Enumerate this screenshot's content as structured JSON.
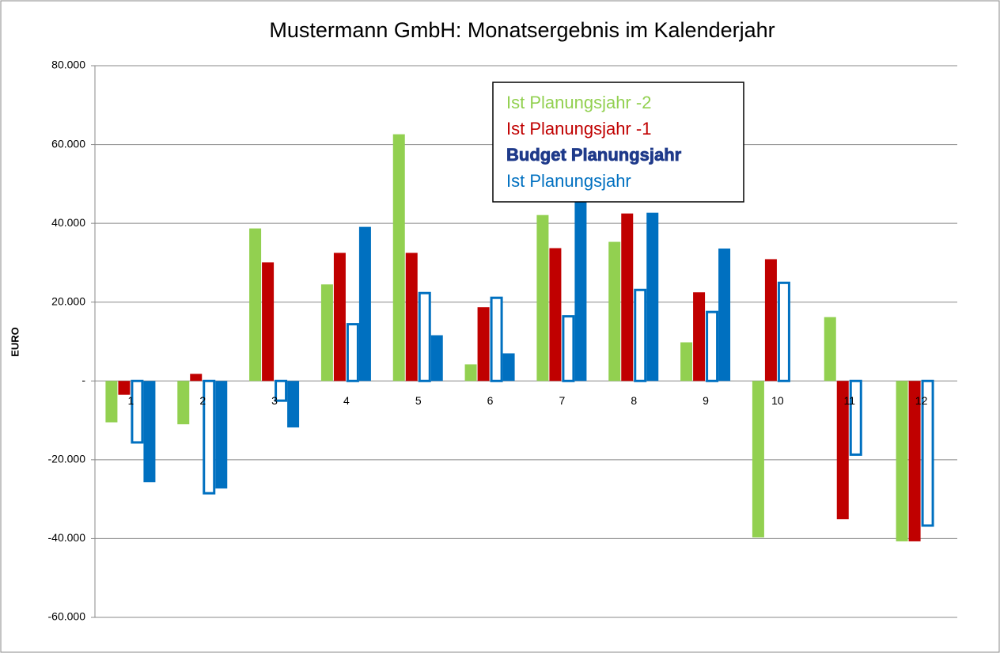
{
  "chart_data": {
    "type": "bar",
    "title": "Mustermann GmbH: Monatsergebnis im Kalenderjahr",
    "y_label": "EURO",
    "categories": [
      "1",
      "2",
      "3",
      "4",
      "5",
      "6",
      "7",
      "8",
      "9",
      "10",
      "11",
      "12"
    ],
    "series": [
      {
        "name": "Ist Planungsjahr -2",
        "color": "#92d050",
        "values": [
          -10500,
          -11000,
          38700,
          24500,
          62600,
          4200,
          42100,
          35300,
          9800,
          -39700,
          16200,
          -40700
        ]
      },
      {
        "name": "Ist Planungsjahr -1",
        "color": "#c00000",
        "values": [
          -3500,
          1800,
          30100,
          32500,
          32500,
          18700,
          33700,
          42500,
          22500,
          30900,
          -35100,
          -40700
        ]
      },
      {
        "name": "Budget Planungsjahr",
        "color": "#0070c0",
        "outline": true,
        "values": [
          -15600,
          -28500,
          -5000,
          14400,
          22300,
          21100,
          16400,
          23100,
          17500,
          24900,
          -18700,
          -36700
        ]
      },
      {
        "name": "Ist Planungsjahr",
        "color": "#0070c0",
        "values": [
          -25700,
          -27300,
          -11800,
          39100,
          11600,
          7000,
          47000,
          42700,
          33600,
          null,
          null,
          null
        ]
      }
    ],
    "ylim": [
      -60000,
      80000
    ],
    "yticks": [
      {
        "value": -60000,
        "label": "-60.000"
      },
      {
        "value": -40000,
        "label": "-40.000"
      },
      {
        "value": -20000,
        "label": "-20.000"
      },
      {
        "value": 0,
        "label": "-"
      },
      {
        "value": 20000,
        "label": "20.000"
      },
      {
        "value": 40000,
        "label": "40.000"
      },
      {
        "value": 60000,
        "label": "60.000"
      },
      {
        "value": 80000,
        "label": "80.000"
      }
    ],
    "grid": true
  }
}
